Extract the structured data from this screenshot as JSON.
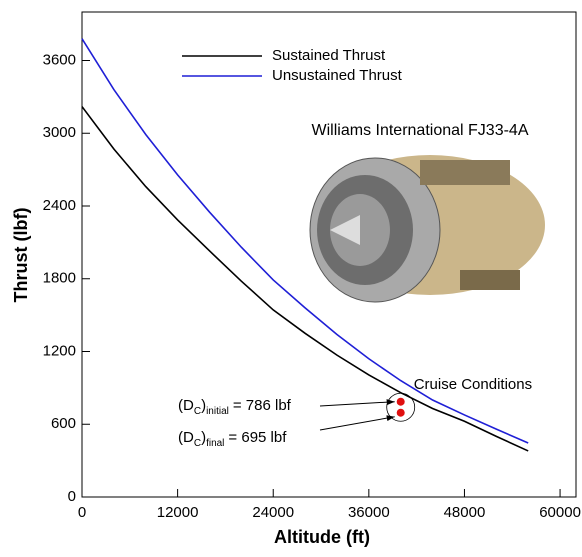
{
  "chart_data": {
    "type": "line",
    "x_label": "Altitude (ft)",
    "y_label": "Thrust (lbf)",
    "xlim": [
      0,
      62000
    ],
    "ylim": [
      0,
      4000
    ],
    "xticks": [
      0,
      12000,
      24000,
      36000,
      48000,
      60000
    ],
    "yticks": [
      0,
      600,
      1200,
      1800,
      2400,
      3000,
      3600
    ],
    "legend": "top",
    "x": [
      0,
      4000,
      8000,
      12000,
      16000,
      20000,
      24000,
      28000,
      32000,
      36000,
      40000,
      44000,
      48000,
      52000,
      56000
    ],
    "series": [
      {
        "name": "Sustained Thrust",
        "color": "#000000",
        "values": [
          3220,
          2870,
          2560,
          2285,
          2030,
          1780,
          1543,
          1350,
          1170,
          1007,
          860,
          730,
          625,
          500,
          380
        ]
      },
      {
        "name": "Unsustained Thrust",
        "color": "#1f1fd6",
        "values": [
          3780,
          3360,
          2990,
          2657,
          2350,
          2060,
          1790,
          1560,
          1340,
          1140,
          960,
          800,
          677,
          560,
          445
        ]
      }
    ],
    "cruise": {
      "label": "Cruise Conditions",
      "color": "#e01010",
      "x": [
        40000,
        40000
      ],
      "values": [
        786,
        695
      ]
    },
    "annotations": [
      {
        "prefix": "(D",
        "sub": "C",
        "close": ")",
        "sub2": "initial",
        "suffix": "= 786 lbf"
      },
      {
        "prefix": "(D",
        "sub": "C",
        "close": ")",
        "sub2": "final",
        "suffix": "= 695 lbf"
      }
    ],
    "image_caption": "Williams International FJ33-4A"
  }
}
